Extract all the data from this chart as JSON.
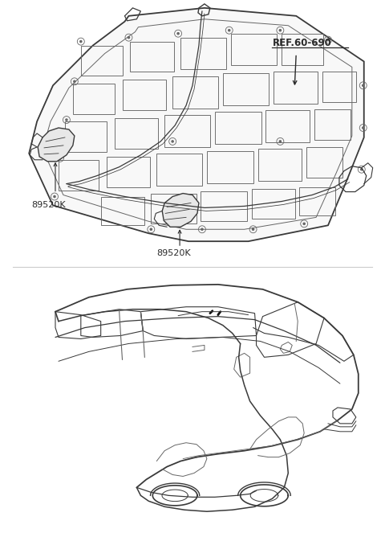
{
  "bg_color": "#ffffff",
  "line_color": "#3a3a3a",
  "light_line_color": "#999999",
  "medium_line_color": "#666666",
  "text_color": "#2a2a2a",
  "label_89520K_1": "89520K",
  "label_89520K_2": "89520K",
  "label_ref": "REF.60-690",
  "fig_width": 4.8,
  "fig_height": 6.63,
  "dpi": 100
}
